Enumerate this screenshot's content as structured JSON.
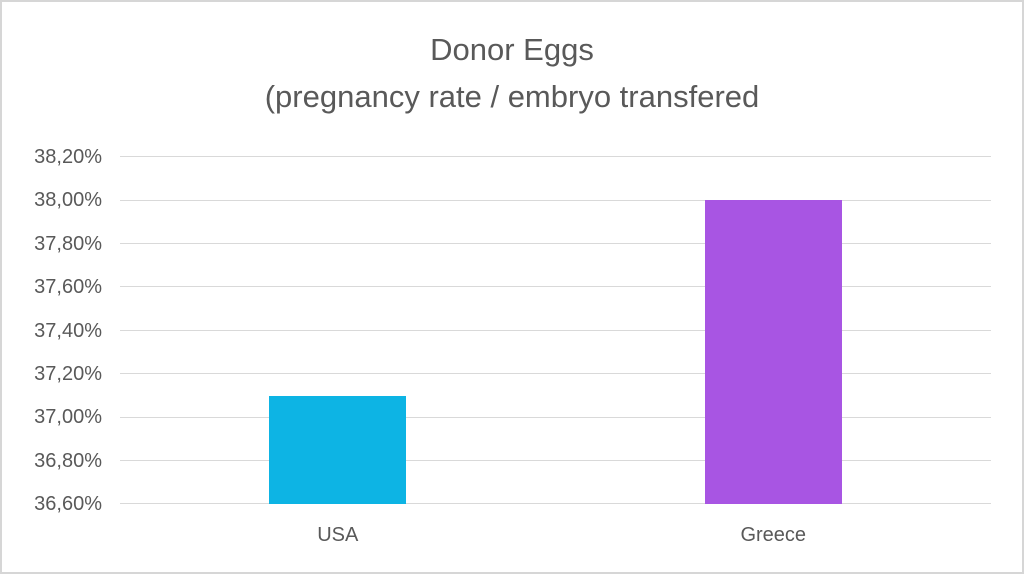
{
  "chart_data": {
    "type": "bar",
    "title": "Donor Eggs",
    "subtitle": "(pregnancy rate / embryo transfered",
    "categories": [
      "USA",
      "Greece"
    ],
    "values": [
      37.1,
      38.0
    ],
    "bar_colors": [
      "#0db4e4",
      "#a855e3"
    ],
    "ylim": [
      36.6,
      38.2
    ],
    "ytick_step": 0.2,
    "ytick_labels": [
      "36,60%",
      "36,80%",
      "37,00%",
      "37,20%",
      "37,40%",
      "37,60%",
      "37,80%",
      "38,00%",
      "38,20%"
    ],
    "xlabel": "",
    "ylabel": "",
    "grid": true,
    "legend": false
  },
  "colors": {
    "gridline": "#d9d9d9",
    "text": "#595959",
    "frame_border": "#d6d6d6",
    "background": "#ffffff"
  }
}
